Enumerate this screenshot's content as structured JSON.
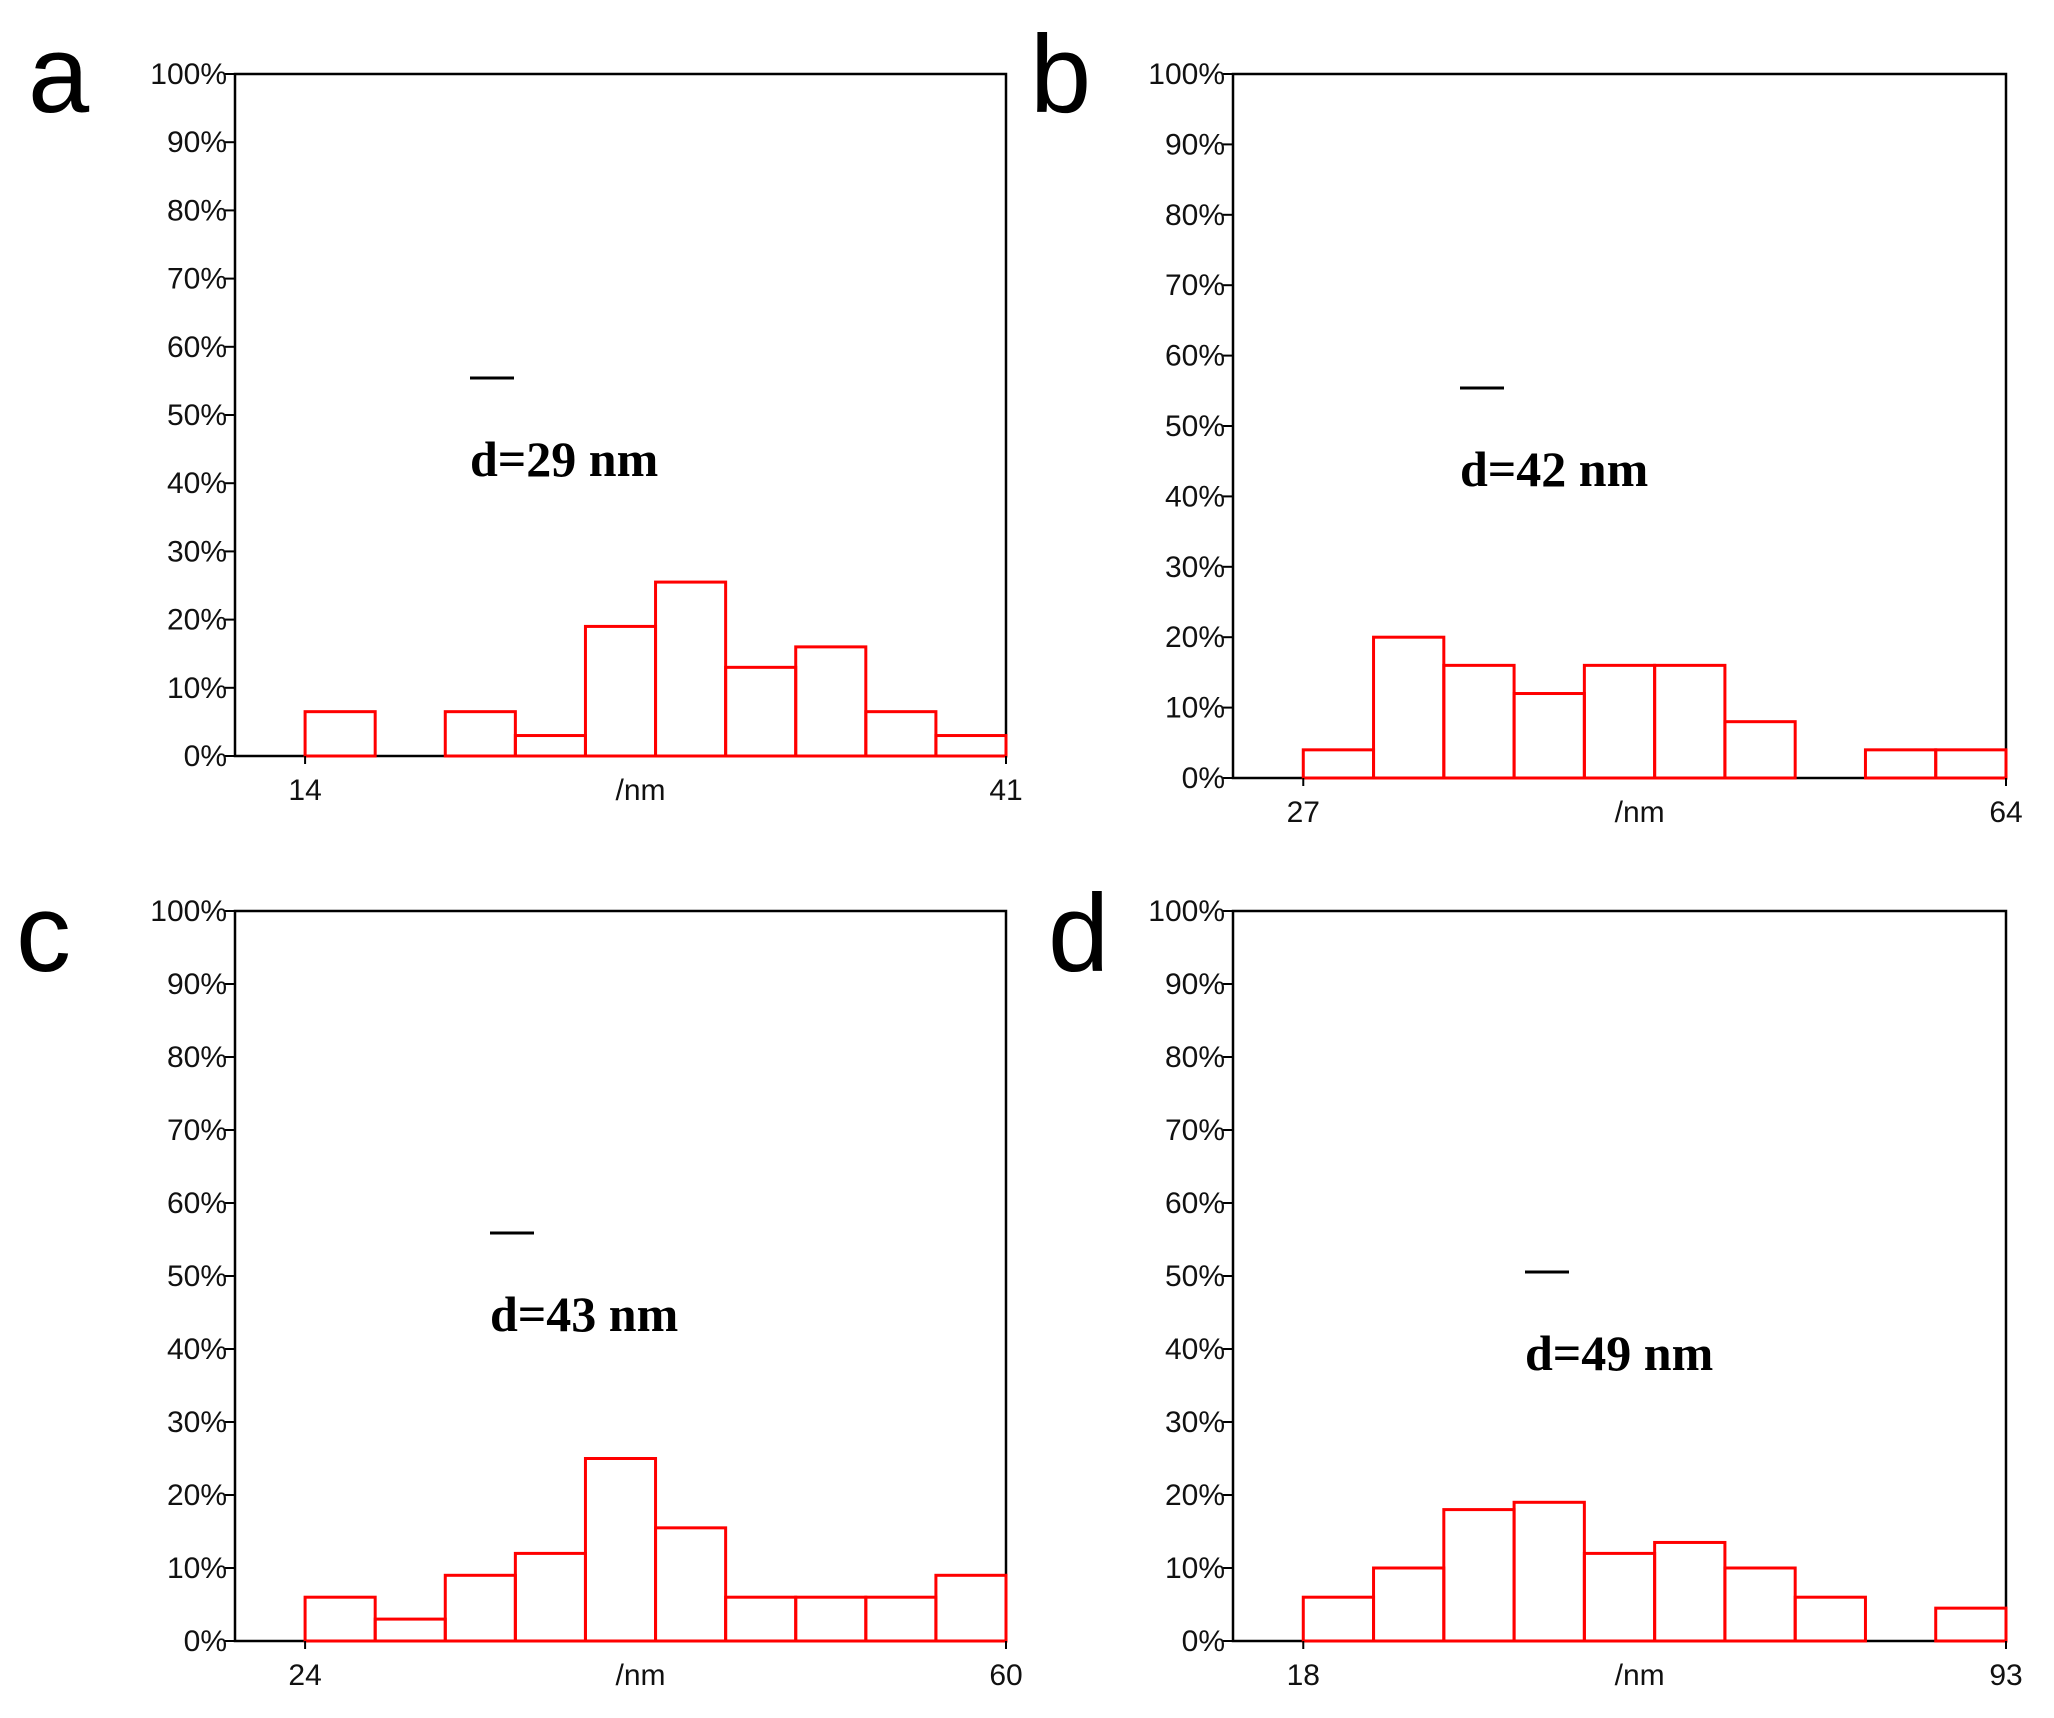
{
  "chart_data": [
    {
      "type": "bar",
      "panel_label": "a",
      "xlabel": "/nm",
      "x_ticks": [
        "14",
        "41"
      ],
      "y_ticks": [
        "0%",
        "10%",
        "20%",
        "30%",
        "40%",
        "50%",
        "60%",
        "70%",
        "80%",
        "90%",
        "100%"
      ],
      "ylim": [
        0,
        100
      ],
      "bin_offset": 1,
      "bins": 11,
      "values": [
        6.5,
        0,
        6.5,
        3,
        19,
        25.5,
        13,
        16,
        6.5,
        3
      ],
      "annotation": "d=29 nm",
      "bar_color": "#ff0000"
    },
    {
      "type": "bar",
      "panel_label": "b",
      "xlabel": "/nm",
      "x_ticks": [
        "27",
        "64"
      ],
      "y_ticks": [
        "0%",
        "10%",
        "20%",
        "30%",
        "40%",
        "50%",
        "60%",
        "70%",
        "80%",
        "90%",
        "100%"
      ],
      "ylim": [
        0,
        100
      ],
      "bin_offset": 1,
      "bins": 11,
      "values": [
        4,
        20,
        16,
        12,
        16,
        16,
        8,
        0,
        4,
        4
      ],
      "annotation": "d=42 nm",
      "bar_color": "#ff0000"
    },
    {
      "type": "bar",
      "panel_label": "c",
      "xlabel": "/nm",
      "x_ticks": [
        "24",
        "60"
      ],
      "y_ticks": [
        "0%",
        "10%",
        "20%",
        "30%",
        "40%",
        "50%",
        "60%",
        "70%",
        "80%",
        "90%",
        "100%"
      ],
      "ylim": [
        0,
        100
      ],
      "bin_offset": 1,
      "bins": 11,
      "values": [
        6,
        3,
        9,
        12,
        25,
        15.5,
        6,
        6,
        6,
        9
      ],
      "annotation": "d=43 nm",
      "bar_color": "#ff0000"
    },
    {
      "type": "bar",
      "panel_label": "d",
      "xlabel": "/nm",
      "x_ticks": [
        "18",
        "93"
      ],
      "y_ticks": [
        "0%",
        "10%",
        "20%",
        "30%",
        "40%",
        "50%",
        "60%",
        "70%",
        "80%",
        "90%",
        "100%"
      ],
      "ylim": [
        0,
        100
      ],
      "bin_offset": 1,
      "bins": 11,
      "values": [
        6,
        10,
        18,
        19,
        12,
        13.5,
        10,
        6,
        0,
        4.5
      ],
      "annotation": "d=49 nm",
      "bar_color": "#ff0000"
    }
  ]
}
